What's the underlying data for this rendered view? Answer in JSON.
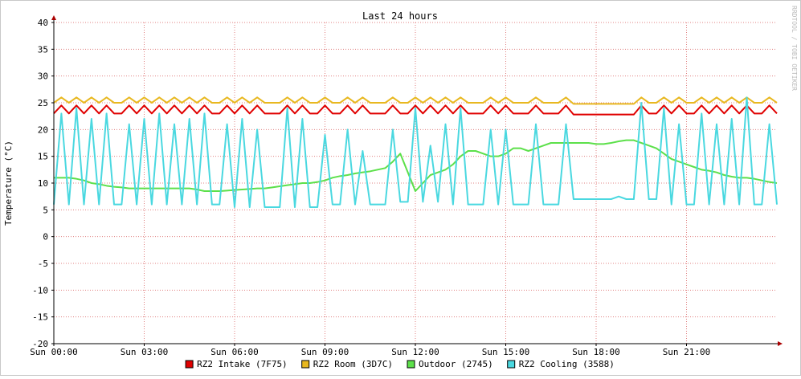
{
  "chart_data": {
    "type": "line",
    "title": "Last 24 hours",
    "y_label": "Temperature (°C)",
    "watermark": "RRDTOOL / TOBI OETIKER",
    "xlim": [
      0,
      24
    ],
    "xticks": [
      {
        "value": 0,
        "label": "Sun 00:00"
      },
      {
        "value": 3,
        "label": "Sun 03:00"
      },
      {
        "value": 6,
        "label": "Sun 06:00"
      },
      {
        "value": 9,
        "label": "Sun 09:00"
      },
      {
        "value": 12,
        "label": "Sun 12:00"
      },
      {
        "value": 15,
        "label": "Sun 15:00"
      },
      {
        "value": 18,
        "label": "Sun 18:00"
      },
      {
        "value": 21,
        "label": "Sun 21:00"
      }
    ],
    "ylim": [
      -20,
      40
    ],
    "yticks": [
      -20,
      -15,
      -10,
      -5,
      0,
      5,
      10,
      15,
      20,
      25,
      30,
      35,
      40
    ],
    "grid": true,
    "legend": "bottom",
    "x": [
      0,
      0.25,
      0.5,
      0.75,
      1,
      1.25,
      1.5,
      1.75,
      2,
      2.25,
      2.5,
      2.75,
      3,
      3.25,
      3.5,
      3.75,
      4,
      4.25,
      4.5,
      4.75,
      5,
      5.25,
      5.5,
      5.75,
      6,
      6.25,
      6.5,
      6.75,
      7,
      7.25,
      7.5,
      7.75,
      8,
      8.25,
      8.5,
      8.75,
      9,
      9.25,
      9.5,
      9.75,
      10,
      10.25,
      10.5,
      10.75,
      11,
      11.25,
      11.5,
      11.75,
      12,
      12.25,
      12.5,
      12.75,
      13,
      13.25,
      13.5,
      13.75,
      14,
      14.25,
      14.5,
      14.75,
      15,
      15.25,
      15.5,
      15.75,
      16,
      16.25,
      16.5,
      16.75,
      17,
      17.25,
      17.5,
      17.75,
      18,
      18.25,
      18.5,
      18.75,
      19,
      19.25,
      19.5,
      19.75,
      20,
      20.25,
      20.5,
      20.75,
      21,
      21.25,
      21.5,
      21.75,
      22,
      22.25,
      22.5,
      22.75,
      23,
      23.25,
      23.5,
      23.75,
      24
    ],
    "series": [
      {
        "name": "RZ2 Intake (7F75)",
        "color": "#e00000",
        "values": [
          23,
          24.5,
          23,
          24.5,
          23,
          24.5,
          23,
          24.5,
          23,
          23,
          24.5,
          23,
          24.5,
          23,
          24.5,
          23,
          24.5,
          23,
          24.5,
          23,
          24.5,
          23,
          23,
          24.5,
          23,
          24.5,
          23,
          24.5,
          23,
          23,
          23,
          24.5,
          23,
          24.5,
          23,
          23,
          24.5,
          23,
          23,
          24.5,
          23,
          24.5,
          23,
          23,
          23,
          24.5,
          23,
          23,
          24.5,
          23,
          24.5,
          23,
          24.5,
          23,
          24.5,
          23,
          23,
          23,
          24.5,
          23,
          24.5,
          23,
          23,
          23,
          24.5,
          23,
          23,
          23,
          24.5,
          22.8,
          22.8,
          22.8,
          22.8,
          22.8,
          22.8,
          22.8,
          22.8,
          22.8,
          24.5,
          23,
          23,
          24.5,
          23,
          24.5,
          23,
          23,
          24.5,
          23,
          24.5,
          23,
          24.5,
          23,
          24.5,
          23,
          23,
          24.5,
          23
        ]
      },
      {
        "name": "RZ2 Room (3D7C)",
        "color": "#e8b820",
        "values": [
          25,
          26,
          25,
          26,
          25,
          26,
          25,
          26,
          25,
          25,
          26,
          25,
          26,
          25,
          26,
          25,
          26,
          25,
          26,
          25,
          26,
          25,
          25,
          26,
          25,
          26,
          25,
          26,
          25,
          25,
          25,
          26,
          25,
          26,
          25,
          25,
          26,
          25,
          25,
          26,
          25,
          26,
          25,
          25,
          25,
          26,
          25,
          25,
          26,
          25,
          26,
          25,
          26,
          25,
          26,
          25,
          25,
          25,
          26,
          25,
          26,
          25,
          25,
          25,
          26,
          25,
          25,
          25,
          26,
          24.8,
          24.8,
          24.8,
          24.8,
          24.8,
          24.8,
          24.8,
          24.8,
          24.8,
          26,
          25,
          25,
          26,
          25,
          26,
          25,
          25,
          26,
          25,
          26,
          25,
          26,
          25,
          26,
          25,
          25,
          26,
          25
        ]
      },
      {
        "name": "Outdoor (2745)",
        "color": "#5ce04a",
        "values": [
          11,
          11,
          11,
          10.8,
          10.5,
          10,
          9.8,
          9.5,
          9.3,
          9.2,
          9,
          9,
          9,
          9,
          9,
          9,
          9,
          9,
          9,
          8.8,
          8.5,
          8.5,
          8.5,
          8.6,
          8.7,
          8.8,
          8.9,
          9,
          9,
          9.2,
          9.4,
          9.6,
          9.8,
          10,
          10,
          10.2,
          10.5,
          11,
          11.3,
          11.5,
          11.8,
          12,
          12.2,
          12.5,
          12.8,
          14,
          15.5,
          12,
          8.5,
          10,
          11.5,
          12,
          12.5,
          13.5,
          15,
          16,
          16,
          15.5,
          15,
          15,
          15.5,
          16.5,
          16.5,
          16,
          16.5,
          17,
          17.5,
          17.5,
          17.5,
          17.5,
          17.5,
          17.5,
          17.3,
          17.3,
          17.5,
          17.8,
          18,
          18,
          17.5,
          17,
          16.5,
          15.5,
          14.5,
          14,
          13.5,
          13,
          12.5,
          12.3,
          12,
          11.5,
          11.2,
          11,
          11,
          10.8,
          10.5,
          10.2,
          10
        ]
      },
      {
        "name": "RZ2 Cooling (3588)",
        "color": "#4ad8e0",
        "values": [
          6,
          23,
          6,
          24,
          6,
          22,
          6,
          23,
          6,
          6,
          21,
          6,
          22,
          6,
          23,
          6,
          21,
          6,
          22,
          6,
          23,
          6,
          6,
          21,
          5.5,
          22,
          5.5,
          20,
          5.5,
          5.5,
          5.5,
          24,
          5.5,
          22,
          5.5,
          5.5,
          19,
          6,
          6,
          20,
          6,
          16,
          6,
          6,
          6,
          20,
          6.5,
          6.5,
          24,
          6.5,
          17,
          6.5,
          21,
          6,
          24,
          6,
          6,
          6,
          20,
          6,
          20,
          6,
          6,
          6,
          21,
          6,
          6,
          6,
          21,
          7,
          7,
          7,
          7,
          7,
          7,
          7.5,
          7,
          7,
          25,
          7,
          7,
          24,
          6,
          21,
          6,
          6,
          23,
          6,
          21,
          6,
          22,
          6,
          26,
          6,
          6,
          21,
          6
        ]
      }
    ]
  }
}
